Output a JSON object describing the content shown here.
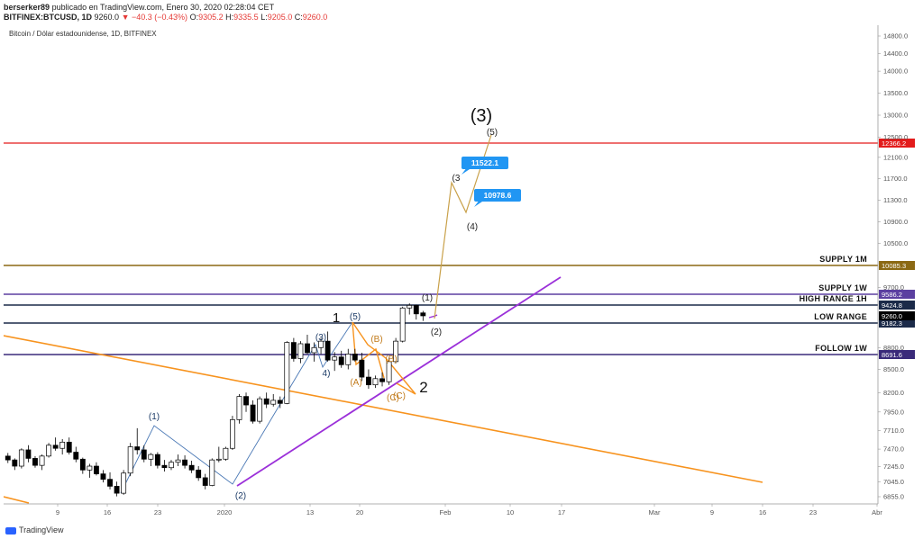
{
  "header": {
    "user": "berserker89",
    "published_text": "publicado en TradingView.com, Enero 30, 2020 02:28:04 CET",
    "symbol": "BITFINEX:BTCUSD, 1D",
    "last": "9260.0",
    "change": "−40.3 (−0.43%)",
    "open_label": "O:",
    "open": "9305.2",
    "high_label": "H:",
    "high": "9335.5",
    "low_label": "L:",
    "low": "9205.0",
    "close_label": "C:",
    "close": "9260.0"
  },
  "footer": {
    "brand": "TradingView"
  },
  "chart_data": {
    "type": "candlestick",
    "title": "Bitcoin / Dólar estadounidense, 1D, BITFINEX",
    "y_ticks": [
      "14800.0",
      "14400.0",
      "14000.0",
      "13500.0",
      "13000.0",
      "12500.0",
      "12100.0",
      "11700.0",
      "11300.0",
      "10900.0",
      "10500.0",
      "10100.0",
      "9700.0",
      "9300.0",
      "8800.0",
      "8500.0",
      "8200.0",
      "7950.0",
      "7710.0",
      "7470.0",
      "7245.0",
      "7045.0",
      "6855.0"
    ],
    "x_ticks": [
      "9",
      "16",
      "23",
      "2020",
      "13",
      "20",
      "Feb",
      "10",
      "17",
      "Mar",
      "9",
      "16",
      "23",
      "Abr"
    ],
    "candles": [
      [
        7380,
        7420,
        7290,
        7330
      ],
      [
        7330,
        7350,
        7200,
        7250
      ],
      [
        7250,
        7480,
        7220,
        7460
      ],
      [
        7460,
        7520,
        7300,
        7350
      ],
      [
        7350,
        7380,
        7230,
        7260
      ],
      [
        7260,
        7400,
        7200,
        7380
      ],
      [
        7380,
        7550,
        7360,
        7520
      ],
      [
        7520,
        7620,
        7450,
        7480
      ],
      [
        7480,
        7600,
        7400,
        7560
      ],
      [
        7560,
        7620,
        7400,
        7430
      ],
      [
        7430,
        7500,
        7300,
        7340
      ],
      [
        7340,
        7360,
        7150,
        7200
      ],
      [
        7200,
        7280,
        7100,
        7250
      ],
      [
        7250,
        7300,
        7130,
        7150
      ],
      [
        7150,
        7200,
        7040,
        7080
      ],
      [
        7080,
        7170,
        6950,
        6990
      ],
      [
        6990,
        7050,
        6860,
        6900
      ],
      [
        6900,
        7200,
        6880,
        7160
      ],
      [
        7160,
        7550,
        7120,
        7500
      ],
      [
        7500,
        7740,
        7400,
        7460
      ],
      [
        7460,
        7520,
        7300,
        7340
      ],
      [
        7340,
        7420,
        7250,
        7400
      ],
      [
        7400,
        7430,
        7220,
        7260
      ],
      [
        7260,
        7330,
        7180,
        7230
      ],
      [
        7230,
        7330,
        7200,
        7300
      ],
      [
        7300,
        7400,
        7250,
        7330
      ],
      [
        7330,
        7390,
        7220,
        7260
      ],
      [
        7260,
        7320,
        7160,
        7200
      ],
      [
        7200,
        7250,
        7060,
        7100
      ],
      [
        7100,
        7150,
        6950,
        7000
      ],
      [
        7000,
        7350,
        6990,
        7330
      ],
      [
        7330,
        7500,
        7300,
        7340
      ],
      [
        7340,
        7500,
        7320,
        7480
      ],
      [
        7480,
        7900,
        7460,
        7850
      ],
      [
        7850,
        8180,
        7800,
        8150
      ],
      [
        8150,
        8200,
        7950,
        8040
      ],
      [
        8040,
        8100,
        7800,
        7830
      ],
      [
        7830,
        8150,
        7800,
        8120
      ],
      [
        8120,
        8200,
        8000,
        8050
      ],
      [
        8050,
        8180,
        8020,
        8100
      ],
      [
        8100,
        8150,
        8000,
        8060
      ],
      [
        8060,
        8900,
        8050,
        8880
      ],
      [
        8880,
        8950,
        8600,
        8640
      ],
      [
        8640,
        8900,
        8580,
        8860
      ],
      [
        8860,
        9000,
        8700,
        8720
      ],
      [
        8720,
        8880,
        8600,
        8800
      ],
      [
        8800,
        8950,
        8700,
        8900
      ],
      [
        8900,
        9050,
        8600,
        8620
      ],
      [
        8620,
        8730,
        8480,
        8660
      ],
      [
        8660,
        8750,
        8520,
        8560
      ],
      [
        8560,
        8780,
        8500,
        8700
      ],
      [
        8700,
        8780,
        8600,
        8620
      ],
      [
        8620,
        8720,
        8350,
        8400
      ],
      [
        8400,
        8500,
        8250,
        8300
      ],
      [
        8300,
        8420,
        8260,
        8380
      ],
      [
        8380,
        8460,
        8280,
        8340
      ],
      [
        8340,
        8650,
        8300,
        8600
      ],
      [
        8600,
        8950,
        8580,
        8900
      ],
      [
        8900,
        9400,
        8880,
        9380
      ],
      [
        9380,
        9450,
        9280,
        9420
      ],
      [
        9420,
        9430,
        9220,
        9290
      ],
      [
        9305.2,
        9335.5,
        9205,
        9260
      ]
    ],
    "levels": [
      {
        "label": "SUPPLY 1M",
        "price": "10085.3",
        "color": "#8b6914"
      },
      {
        "label": "SUPPLY 1W",
        "price": "9586.2",
        "color": "#5b3fa0"
      },
      {
        "label": "HIGH RANGE 1H",
        "price": "9424.8",
        "color": "#1b2a49"
      },
      {
        "label": "LOW RANGE",
        "price": "9182.3",
        "color": "#1b2a49"
      },
      {
        "label": "FOLLOW 1W",
        "price": "8691.6",
        "color": "#3a2a7a"
      },
      {
        "label": "",
        "price": "12366.2",
        "color": "#e31b1b"
      }
    ],
    "last_price": {
      "value": "9260.0",
      "color": "#000000"
    },
    "callouts": [
      "11522.1",
      "10978.6"
    ],
    "wave_labels": {
      "blue": [
        "(1)",
        "(2)",
        "(3)",
        "4)",
        "(5)"
      ],
      "black": [
        "1",
        "2",
        "(3)"
      ],
      "orange": [
        "(A)",
        "(B)",
        "(C)",
        "(B)",
        "(C)"
      ],
      "projection": [
        "(1)",
        "(2)",
        "(3",
        "(4)",
        "(5)"
      ]
    },
    "colors": {
      "up": "#ffffff",
      "down": "#000000",
      "wick": "#000000",
      "orange": "#f7931e",
      "purple": "#9b30d9",
      "blue": "#4a78b5",
      "callout": "#2196f3",
      "projection": "#c9a14a"
    },
    "grid": false
  }
}
